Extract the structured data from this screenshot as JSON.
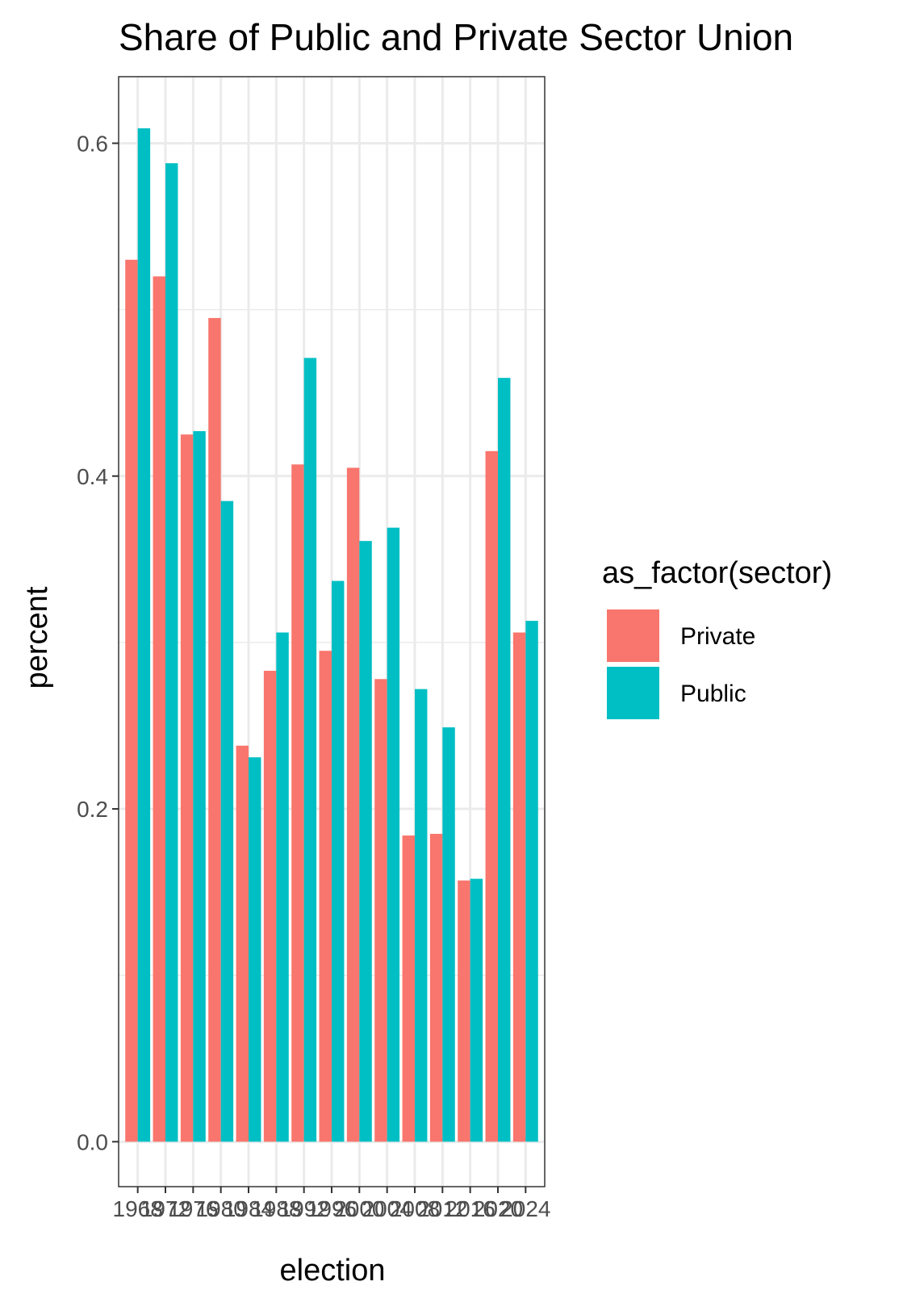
{
  "chart_data": {
    "type": "bar",
    "title": "Share of Public and Private Sector Union",
    "xlabel": "election",
    "ylabel": "percent",
    "categories": [
      "1968",
      "1972",
      "1976",
      "1980",
      "1984",
      "1988",
      "1992",
      "1996",
      "2000",
      "2004",
      "2008",
      "2012",
      "2016",
      "2020",
      "2024"
    ],
    "x_tick_labels": [
      "1968",
      "1972",
      "1976",
      "1980",
      "1984",
      "1988",
      "1992",
      "1996",
      "2000",
      "2004",
      "2008",
      "2012",
      "2016",
      "2020",
      "2024"
    ],
    "series": [
      {
        "name": "Private",
        "color": "#F8766D",
        "values": [
          0.53,
          0.52,
          0.425,
          0.495,
          0.238,
          0.283,
          0.407,
          0.295,
          0.405,
          0.278,
          0.184,
          0.185,
          0.157,
          0.415,
          0.306
        ]
      },
      {
        "name": "Public",
        "color": "#00BFC4",
        "values": [
          0.609,
          0.588,
          0.427,
          0.385,
          0.231,
          0.306,
          0.471,
          0.337,
          0.361,
          0.369,
          0.272,
          0.249,
          0.158,
          0.459,
          0.313
        ]
      }
    ],
    "ylim": [
      -0.027,
      0.64
    ],
    "y_ticks": [
      "0.0",
      "0.2",
      "0.4",
      "0.6"
    ],
    "y_tick_values": [
      0.0,
      0.2,
      0.4,
      0.6
    ],
    "y_minor_values": [
      0.1,
      0.3,
      0.5
    ],
    "grid": true,
    "legend": {
      "title": "as_factor(sector)",
      "placement": "right",
      "entries": [
        "Private",
        "Public"
      ]
    }
  }
}
